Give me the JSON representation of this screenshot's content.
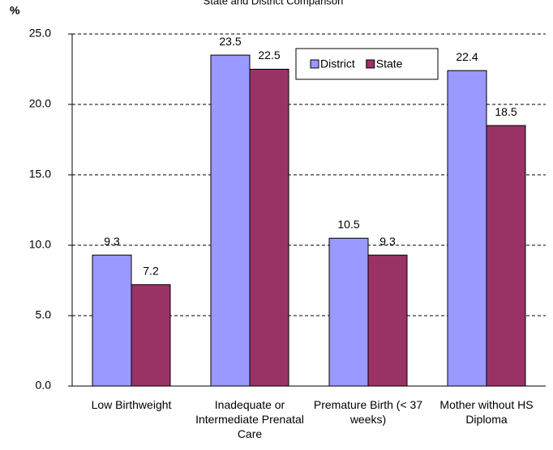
{
  "chart_data": {
    "type": "bar",
    "title": "State and District Comparison",
    "ylabel": "%",
    "categories": [
      "Low Birthweight",
      "Inadequate or Intermediate Prenatal Care",
      "Premature Birth (< 37 weeks)",
      "Mother without HS Diploma"
    ],
    "series": [
      {
        "name": "District",
        "color": "#9999ff",
        "values": [
          9.3,
          23.5,
          10.5,
          22.4
        ]
      },
      {
        "name": "State",
        "color": "#993366",
        "values": [
          7.2,
          22.5,
          9.3,
          18.5
        ]
      }
    ],
    "ylim": [
      0,
      25
    ],
    "yticks": [
      {
        "value": 0,
        "label": "0.0"
      },
      {
        "value": 5,
        "label": "5.0"
      },
      {
        "value": 10,
        "label": "10.0"
      },
      {
        "value": 15,
        "label": "15.0"
      },
      {
        "value": 20,
        "label": "20.0"
      },
      {
        "value": 25,
        "label": "25.0"
      }
    ],
    "grid": true,
    "legend": "top-right"
  }
}
